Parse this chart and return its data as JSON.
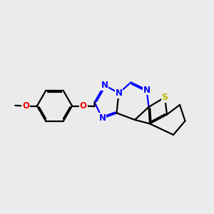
{
  "background_color": "#ebebeb",
  "bond_color": "#000000",
  "nitrogen_color": "#0000ff",
  "oxygen_color": "#ff0000",
  "sulfur_color": "#bbbb00",
  "line_width": 1.6,
  "dbo": 0.055,
  "figsize": [
    3.0,
    3.0
  ],
  "dpi": 100,
  "xlim": [
    0,
    10
  ],
  "ylim": [
    1.5,
    9.5
  ]
}
